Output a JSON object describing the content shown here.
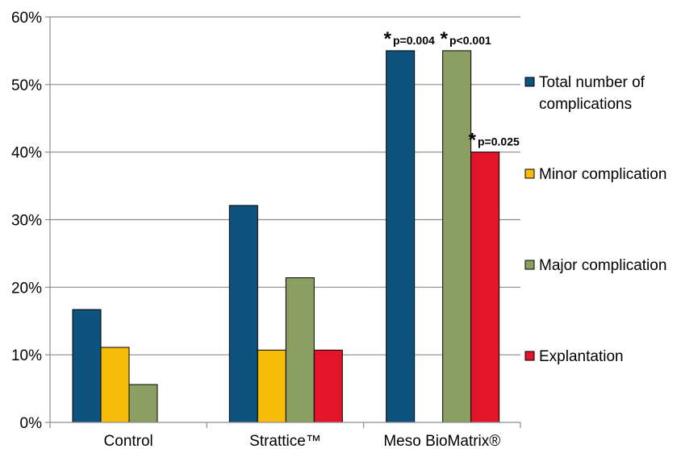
{
  "chart_data": {
    "type": "bar",
    "categories": [
      "Control",
      "Strattice™",
      "Meso BioMatrix®"
    ],
    "series": [
      {
        "name": "Total number of complications",
        "values": [
          16.7,
          32.1,
          55.0
        ]
      },
      {
        "name": "Minor complication",
        "values": [
          11.1,
          10.7,
          null
        ]
      },
      {
        "name": "Major complication",
        "values": [
          5.6,
          21.4,
          55.0
        ]
      },
      {
        "name": "Explantation",
        "values": [
          null,
          10.7,
          40.0
        ]
      }
    ],
    "colors": [
      "#0e5280",
      "#f7bc0a",
      "#8c9f63",
      "#e3152b"
    ],
    "ylim": [
      0,
      60
    ],
    "yticks": [
      "0%",
      "10%",
      "20%",
      "30%",
      "40%",
      "50%",
      "60%"
    ],
    "grid": true,
    "legend_position": "right",
    "annotations": [
      {
        "category": "Meso BioMatrix®",
        "series": "Total number of complications",
        "star": "*",
        "text": "p=0.004"
      },
      {
        "category": "Meso BioMatrix®",
        "series": "Major complication",
        "star": "*",
        "text": "p<0.001"
      },
      {
        "category": "Meso BioMatrix®",
        "series": "Explantation",
        "star": "*",
        "text": "p=0.025"
      }
    ]
  }
}
